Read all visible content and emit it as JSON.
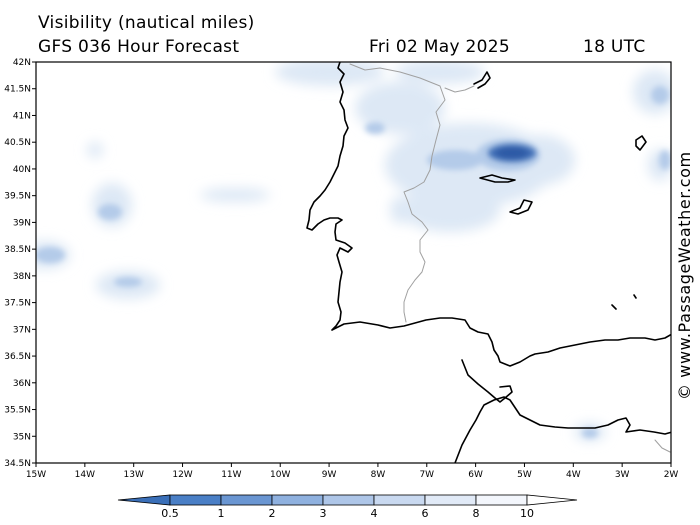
{
  "header": {
    "title": "Visibility (nautical miles)",
    "model": "GFS 036 Hour Forecast",
    "date": "Fri 02 May 2025",
    "time": "18 UTC"
  },
  "credit": "© www.PassageWeather.com",
  "map": {
    "lat_labels": [
      "42N",
      "41.5N",
      "41N",
      "40.5N",
      "40N",
      "39.5N",
      "39N",
      "38.5N",
      "38N",
      "37.5N",
      "37N",
      "36.5N",
      "36N",
      "35.5N",
      "35N",
      "34.5N"
    ],
    "lon_labels": [
      "15W",
      "14W",
      "13W",
      "12W",
      "11W",
      "10W",
      "9W",
      "8W",
      "7W",
      "6W",
      "5W",
      "4W",
      "3W",
      "2W"
    ]
  },
  "legend": {
    "labels": [
      "0.5",
      "1",
      "2",
      "3",
      "4",
      "6",
      "8",
      "10"
    ],
    "colors": [
      "#3a6fb8",
      "#4a7fc6",
      "#6a96d2",
      "#8fb1df",
      "#aec6e8",
      "#c9d9f0",
      "#e1eaf7",
      "#f3f6fc"
    ]
  },
  "colors": {
    "coast": "#000000",
    "border": "#a0a0a0",
    "fog_light": "#dce7f5",
    "fog_mid": "#b4cbe9",
    "fog_dark": "#3f6eb6"
  }
}
